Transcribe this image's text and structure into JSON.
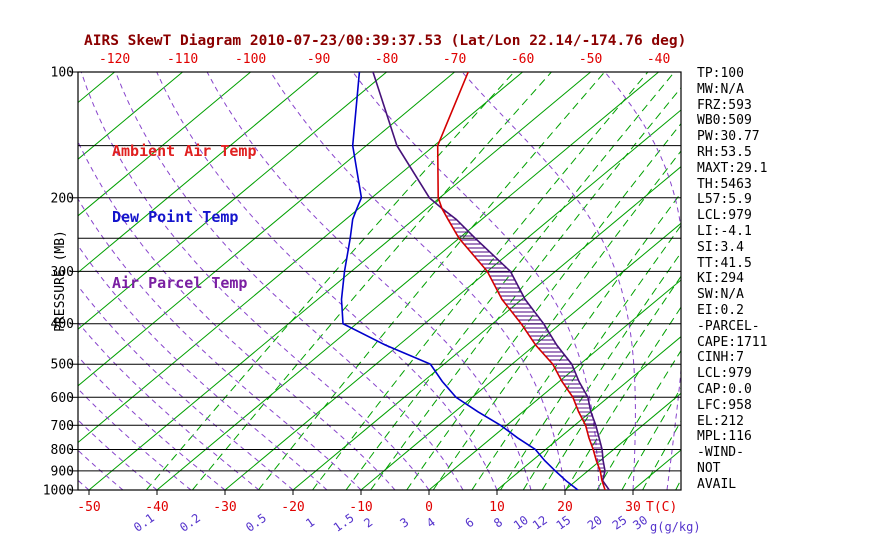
{
  "title": "AIRS SkewT Diagram 2010-07-23/00:39:37.53 (Lat/Lon 22.14/-174.76 deg)",
  "legend": {
    "ambient": "Ambient Air Temp",
    "dew": "Dew Point Temp",
    "parcel": "Air Parcel Temp"
  },
  "colors": {
    "title": "#8b0000",
    "axis_red": "#e00000",
    "mixing_label": "#5533cc",
    "isotherm": "#00a000",
    "mixing_line": "#00a000",
    "moist_adiabat": "#8844cc",
    "ambient_curve": "#d40000",
    "dew_curve": "#0000cc",
    "parcel_curve": "#46127a",
    "hatch": "#4b0082",
    "grid": "#000000",
    "legend_ambient": "#e02020",
    "legend_dew": "#1414cc",
    "legend_parcel": "#7a1fa2",
    "stats_text": "#000000"
  },
  "axes": {
    "pressure_label": "PRESSURE (MB)",
    "pressure_ticks": [
      100,
      200,
      300,
      400,
      500,
      600,
      700,
      800,
      900,
      1000
    ],
    "pressure_gridlines": [
      100,
      150,
      200,
      250,
      300,
      400,
      500,
      600,
      700,
      800,
      900,
      1000
    ],
    "top_temp_ticks": [
      -120,
      -110,
      -100,
      -90,
      -80,
      -70,
      -60,
      -50,
      -40
    ],
    "bottom_temp_ticks": [
      -50,
      -40,
      -30,
      -20,
      -10,
      0,
      10,
      20,
      30
    ],
    "temp_unit_label": "T(C)",
    "mixing_ratio_labels": [
      "0.1",
      "0.2",
      "0.5",
      "1",
      "1.5",
      "2",
      "3",
      "4",
      "6",
      "8",
      "10",
      "12",
      "15",
      "20",
      "25",
      "30"
    ],
    "mixing_ratio_unit_label": "g(g/kg)"
  },
  "stats": {
    "lines": [
      "TP:100",
      "MW:N/A",
      "FRZ:593",
      "WB0:509",
      "PW:30.77",
      "RH:53.5",
      "MAXT:29.1",
      "TH:5463",
      "L57:5.9",
      "LCL:979",
      "LI:-4.1",
      "SI:3.4",
      "TT:41.5",
      "KI:294",
      "SW:N/A",
      "EI:0.2",
      "-PARCEL-",
      "CAPE:1711",
      "CINH:7",
      "LCL:979",
      "CAP:0.0",
      "LFC:958",
      "EL:212",
      "MPL:116",
      "-WIND-",
      "NOT",
      "AVAIL"
    ]
  },
  "chart_data": {
    "type": "line",
    "subtype": "skew-t-log-p",
    "title": "AIRS SkewT Diagram 2010-07-23/00:39:37.53 (Lat/Lon 22.14/-174.76 deg)",
    "xlabel": "T(C)",
    "ylabel": "PRESSURE (MB)",
    "y_scale": "log",
    "y_range_mb": [
      100,
      1000
    ],
    "x_range_c_at_surface": [
      -51,
      37
    ],
    "skew_deg_per_decade": 61.5,
    "isotherms_c": {
      "min": -130,
      "max": 40,
      "step": 10
    },
    "mixing_ratio_lines_gkg": [
      0.1,
      0.2,
      0.5,
      1,
      1.5,
      2,
      3,
      4,
      6,
      8,
      10,
      12,
      15,
      20,
      25,
      30,
      40
    ],
    "moist_adiabat_starts_c": [
      -60,
      -55,
      -50,
      -45,
      -40,
      -35,
      -30,
      -25,
      -20,
      -15,
      -10,
      -5,
      0,
      5,
      10,
      15,
      20,
      25,
      30,
      35,
      40
    ],
    "pressure_mb": [
      1000,
      950,
      900,
      850,
      800,
      750,
      700,
      650,
      600,
      550,
      500,
      450,
      400,
      350,
      300,
      250,
      225,
      212,
      200,
      150,
      100
    ],
    "series": [
      {
        "name": "Ambient Air Temp",
        "values_c": [
          25.9,
          23.8,
          21.8,
          19.4,
          17.0,
          14.3,
          11.6,
          8.2,
          4.8,
          0.4,
          -4.0,
          -9.9,
          -15.8,
          -22.9,
          -30.0,
          -40.0,
          -45.0,
          -47.8,
          -50.2,
          -59.5,
          -68.0
        ]
      },
      {
        "name": "Dew Point Temp",
        "values_c": [
          21.9,
          18.5,
          15.2,
          11.8,
          8.5,
          3.8,
          -0.9,
          -6.6,
          -12.4,
          -17.2,
          -22.0,
          -32.0,
          -42.0,
          -46.5,
          -51.0,
          -56.0,
          -59.0,
          -60.3,
          -61.5,
          -72.0,
          -84.0
        ]
      },
      {
        "name": "Air Parcel Temp",
        "values_c": [
          26.5,
          23.9,
          22.5,
          20.4,
          18.3,
          15.8,
          13.1,
          10.0,
          7.0,
          2.9,
          -1.2,
          -6.8,
          -12.5,
          -19.5,
          -26.6,
          -37.6,
          -43.8,
          -47.8,
          -51.5,
          -65.5,
          -82.0
        ]
      }
    ],
    "cape_region": {
      "from_mb": 958,
      "to_mb": 212,
      "between": [
        "Ambient Air Temp",
        "Air Parcel Temp"
      ]
    }
  }
}
